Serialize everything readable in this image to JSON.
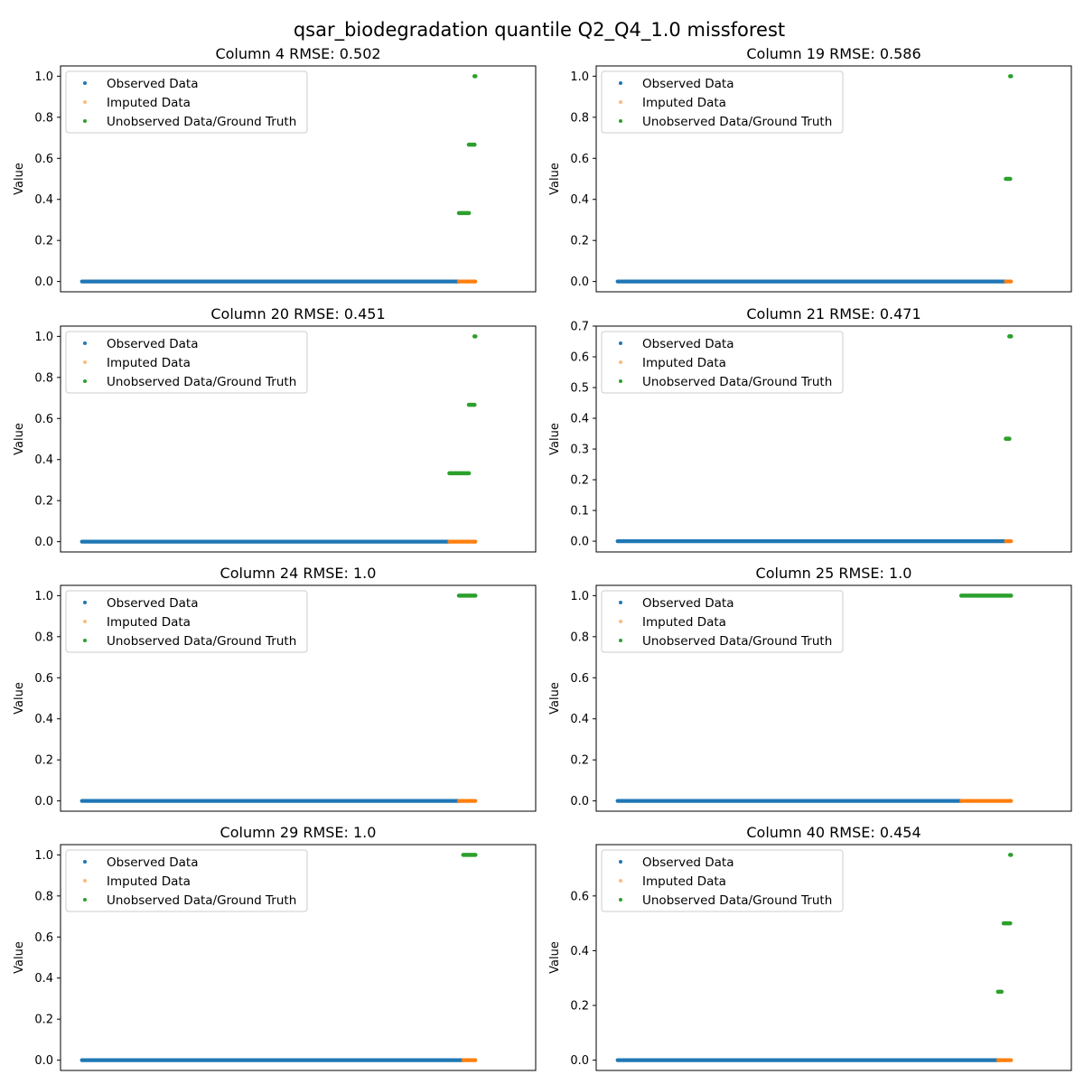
{
  "figure_title": "qsar_biodegradation quantile Q2_Q4_1.0 missforest",
  "legend_labels": [
    "Observed Data",
    "Imputed Data",
    "Unobserved Data/Ground Truth"
  ],
  "colors": {
    "observed": "#1f77b4",
    "imputed": "#ff7f0e",
    "ground_truth": "#2ca02c"
  },
  "chart_data": [
    {
      "type": "scatter",
      "title": "Column 4 RMSE: 0.502",
      "ylabel": "Value",
      "ylim": [
        -0.05,
        1.05
      ],
      "yticks": [
        0.0,
        0.2,
        0.4,
        0.6,
        0.8,
        1.0
      ],
      "tick_labels": [
        "0.0",
        "0.2",
        "0.4",
        "0.6",
        "0.8",
        "1.0"
      ],
      "legend": "upper-left",
      "x_range": [
        0,
        1000
      ],
      "observed": [
        {
          "x_start": 0,
          "x_end": 872,
          "y": 0
        }
      ],
      "imputed": [
        {
          "x_start": 872,
          "x_end": 910,
          "y": 0
        }
      ],
      "ground_truth": [
        {
          "x_start": 872,
          "x_end": 895,
          "y": 0.3333
        },
        {
          "x_start": 895,
          "x_end": 908,
          "y": 0.6667
        },
        {
          "x_start": 908,
          "x_end": 910,
          "y": 1.0
        }
      ]
    },
    {
      "type": "scatter",
      "title": "Column 19 RMSE: 0.586",
      "ylabel": "Value",
      "ylim": [
        -0.05,
        1.05
      ],
      "yticks": [
        0.0,
        0.2,
        0.4,
        0.6,
        0.8,
        1.0
      ],
      "tick_labels": [
        "0.0",
        "0.2",
        "0.4",
        "0.6",
        "0.8",
        "1.0"
      ],
      "legend": "upper-left",
      "x_range": [
        0,
        1000
      ],
      "observed": [
        {
          "x_start": 0,
          "x_end": 898,
          "y": 0
        }
      ],
      "imputed": [
        {
          "x_start": 898,
          "x_end": 910,
          "y": 0
        }
      ],
      "ground_truth": [
        {
          "x_start": 898,
          "x_end": 908,
          "y": 0.5
        },
        {
          "x_start": 908,
          "x_end": 910,
          "y": 1.0
        }
      ]
    },
    {
      "type": "scatter",
      "title": "Column 20 RMSE: 0.451",
      "ylabel": "Value",
      "ylim": [
        -0.05,
        1.05
      ],
      "yticks": [
        0.0,
        0.2,
        0.4,
        0.6,
        0.8,
        1.0
      ],
      "tick_labels": [
        "0.0",
        "0.2",
        "0.4",
        "0.6",
        "0.8",
        "1.0"
      ],
      "legend": "upper-left",
      "x_range": [
        0,
        1000
      ],
      "observed": [
        {
          "x_start": 0,
          "x_end": 850,
          "y": 0
        }
      ],
      "imputed": [
        {
          "x_start": 850,
          "x_end": 910,
          "y": 0
        }
      ],
      "ground_truth": [
        {
          "x_start": 850,
          "x_end": 895,
          "y": 0.3333
        },
        {
          "x_start": 895,
          "x_end": 908,
          "y": 0.6667
        },
        {
          "x_start": 908,
          "x_end": 910,
          "y": 1.0
        }
      ]
    },
    {
      "type": "scatter",
      "title": "Column 21 RMSE: 0.471",
      "ylabel": "Value",
      "ylim": [
        -0.035,
        0.7
      ],
      "yticks": [
        0.0,
        0.1,
        0.2,
        0.3,
        0.4,
        0.5,
        0.6,
        0.7
      ],
      "tick_labels": [
        "0.0",
        "0.1",
        "0.2",
        "0.3",
        "0.4",
        "0.5",
        "0.6",
        "0.7"
      ],
      "legend": "upper-left",
      "x_range": [
        0,
        1000
      ],
      "observed": [
        {
          "x_start": 0,
          "x_end": 898,
          "y": 0
        }
      ],
      "imputed": [
        {
          "x_start": 898,
          "x_end": 910,
          "y": 0
        }
      ],
      "ground_truth": [
        {
          "x_start": 898,
          "x_end": 906,
          "y": 0.3333
        },
        {
          "x_start": 906,
          "x_end": 910,
          "y": 0.6667
        }
      ]
    },
    {
      "type": "scatter",
      "title": "Column 24 RMSE: 1.0",
      "ylabel": "Value",
      "ylim": [
        -0.05,
        1.05
      ],
      "yticks": [
        0.0,
        0.2,
        0.4,
        0.6,
        0.8,
        1.0
      ],
      "tick_labels": [
        "0.0",
        "0.2",
        "0.4",
        "0.6",
        "0.8",
        "1.0"
      ],
      "legend": "upper-left",
      "x_range": [
        0,
        1000
      ],
      "observed": [
        {
          "x_start": 0,
          "x_end": 872,
          "y": 0
        }
      ],
      "imputed": [
        {
          "x_start": 872,
          "x_end": 910,
          "y": 0
        }
      ],
      "ground_truth": [
        {
          "x_start": 872,
          "x_end": 910,
          "y": 1.0
        }
      ]
    },
    {
      "type": "scatter",
      "title": "Column 25 RMSE: 1.0",
      "ylabel": "Value",
      "ylim": [
        -0.05,
        1.05
      ],
      "yticks": [
        0.0,
        0.2,
        0.4,
        0.6,
        0.8,
        1.0
      ],
      "tick_labels": [
        "0.0",
        "0.2",
        "0.4",
        "0.6",
        "0.8",
        "1.0"
      ],
      "legend": "upper-left",
      "x_range": [
        0,
        1000
      ],
      "observed": [
        {
          "x_start": 0,
          "x_end": 795,
          "y": 0
        }
      ],
      "imputed": [
        {
          "x_start": 795,
          "x_end": 910,
          "y": 0
        }
      ],
      "ground_truth": [
        {
          "x_start": 795,
          "x_end": 910,
          "y": 1.0
        }
      ]
    },
    {
      "type": "scatter",
      "title": "Column 29 RMSE: 1.0",
      "ylabel": "Value",
      "ylim": [
        -0.05,
        1.05
      ],
      "yticks": [
        0.0,
        0.2,
        0.4,
        0.6,
        0.8,
        1.0
      ],
      "tick_labels": [
        "0.0",
        "0.2",
        "0.4",
        "0.6",
        "0.8",
        "1.0"
      ],
      "legend": "upper-left",
      "x_range": [
        0,
        1000
      ],
      "observed": [
        {
          "x_start": 0,
          "x_end": 882,
          "y": 0
        }
      ],
      "imputed": [
        {
          "x_start": 882,
          "x_end": 910,
          "y": 0
        }
      ],
      "ground_truth": [
        {
          "x_start": 882,
          "x_end": 910,
          "y": 1.0
        }
      ]
    },
    {
      "type": "scatter",
      "title": "Column 40 RMSE: 0.454",
      "ylabel": "Value",
      "ylim": [
        -0.0375,
        0.7875
      ],
      "yticks": [
        0.0,
        0.2,
        0.4,
        0.6
      ],
      "tick_labels": [
        "0.0",
        "0.2",
        "0.4",
        "0.6"
      ],
      "legend": "upper-left",
      "x_range": [
        0,
        1000
      ],
      "observed": [
        {
          "x_start": 0,
          "x_end": 880,
          "y": 0
        }
      ],
      "imputed": [
        {
          "x_start": 880,
          "x_end": 910,
          "y": 0
        }
      ],
      "ground_truth": [
        {
          "x_start": 880,
          "x_end": 888,
          "y": 0.25
        },
        {
          "x_start": 893,
          "x_end": 908,
          "y": 0.5
        },
        {
          "x_start": 908,
          "x_end": 910,
          "y": 0.75
        }
      ]
    }
  ]
}
